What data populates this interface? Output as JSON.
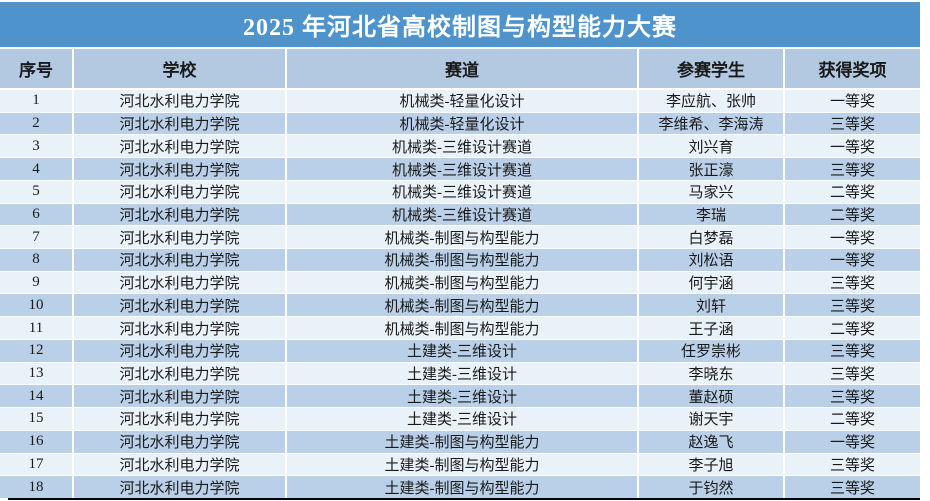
{
  "page": {
    "title": "2025 年河北省高校制图与构型能力大赛"
  },
  "table": {
    "columns": [
      {
        "key": "index",
        "label": "序号"
      },
      {
        "key": "school",
        "label": "学校"
      },
      {
        "key": "track",
        "label": "赛道"
      },
      {
        "key": "students",
        "label": "参赛学生"
      },
      {
        "key": "award",
        "label": "获得奖项"
      }
    ],
    "rows": [
      {
        "index": "1",
        "school": "河北水利电力学院",
        "track": "机械类-轻量化设计",
        "students": "李应航、张帅",
        "award": "一等奖"
      },
      {
        "index": "2",
        "school": "河北水利电力学院",
        "track": "机械类-轻量化设计",
        "students": "李维希、李海涛",
        "award": "三等奖"
      },
      {
        "index": "3",
        "school": "河北水利电力学院",
        "track": "机械类-三维设计赛道",
        "students": "刘兴育",
        "award": "一等奖"
      },
      {
        "index": "4",
        "school": "河北水利电力学院",
        "track": "机械类-三维设计赛道",
        "students": "张正濠",
        "award": "三等奖"
      },
      {
        "index": "5",
        "school": "河北水利电力学院",
        "track": "机械类-三维设计赛道",
        "students": "马家兴",
        "award": "二等奖"
      },
      {
        "index": "6",
        "school": "河北水利电力学院",
        "track": "机械类-三维设计赛道",
        "students": "李瑞",
        "award": "二等奖"
      },
      {
        "index": "7",
        "school": "河北水利电力学院",
        "track": "机械类-制图与构型能力",
        "students": "白梦磊",
        "award": "一等奖"
      },
      {
        "index": "8",
        "school": "河北水利电力学院",
        "track": "机械类-制图与构型能力",
        "students": "刘松语",
        "award": "一等奖"
      },
      {
        "index": "9",
        "school": "河北水利电力学院",
        "track": "机械类-制图与构型能力",
        "students": "何宇涵",
        "award": "三等奖"
      },
      {
        "index": "10",
        "school": "河北水利电力学院",
        "track": "机械类-制图与构型能力",
        "students": "刘轩",
        "award": "三等奖"
      },
      {
        "index": "11",
        "school": "河北水利电力学院",
        "track": "机械类-制图与构型能力",
        "students": "王子涵",
        "award": "二等奖"
      },
      {
        "index": "12",
        "school": "河北水利电力学院",
        "track": "土建类-三维设计",
        "students": "任罗崇彬",
        "award": "三等奖"
      },
      {
        "index": "13",
        "school": "河北水利电力学院",
        "track": "土建类-三维设计",
        "students": "李晓东",
        "award": "三等奖"
      },
      {
        "index": "14",
        "school": "河北水利电力学院",
        "track": "土建类-三维设计",
        "students": "董赵硕",
        "award": "三等奖"
      },
      {
        "index": "15",
        "school": "河北水利电力学院",
        "track": "土建类-三维设计",
        "students": "谢天宇",
        "award": "二等奖"
      },
      {
        "index": "16",
        "school": "河北水利电力学院",
        "track": "土建类-制图与构型能力",
        "students": "赵逸飞",
        "award": "一等奖"
      },
      {
        "index": "17",
        "school": "河北水利电力学院",
        "track": "土建类-制图与构型能力",
        "students": "李子旭",
        "award": "三等奖"
      },
      {
        "index": "18",
        "school": "河北水利电力学院",
        "track": "土建类-制图与构型能力",
        "students": "于钧然",
        "award": "三等奖"
      }
    ]
  },
  "colors": {
    "title_bar_bg": "#4f93cd",
    "title_text": "#ffffff",
    "header_bg": "#b3c9e2",
    "row_odd_bg": "#eaf2f9",
    "row_even_bg": "#b9d0e8",
    "text": "#1a1a1a",
    "separator": "#ffffff",
    "bottom_border": "#000000"
  }
}
